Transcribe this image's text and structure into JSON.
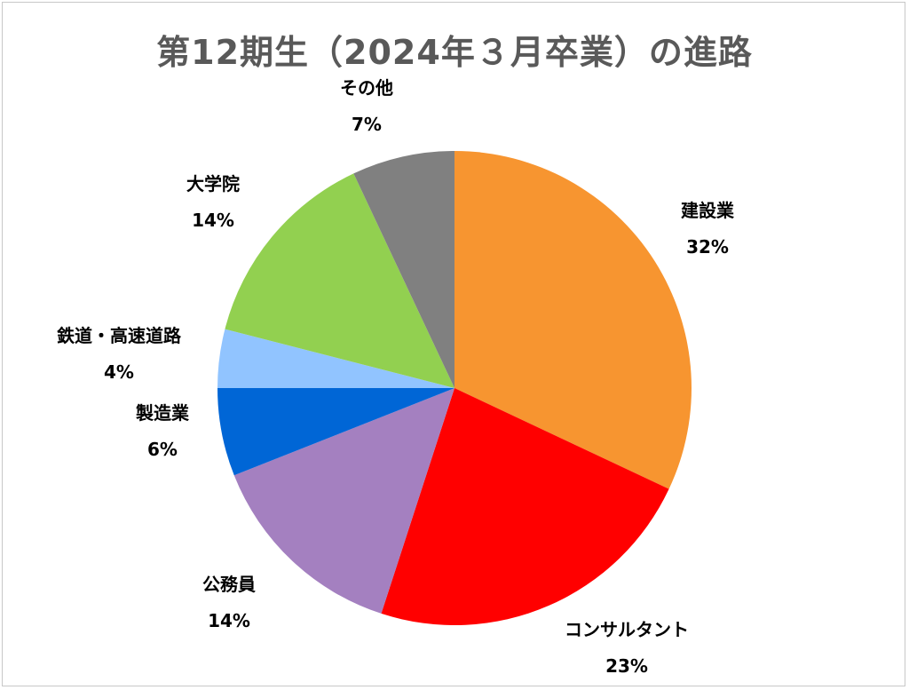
{
  "chart_data": {
    "type": "pie",
    "title": "第12期生（2024年３月卒業）の進路",
    "slices": [
      {
        "label": "建設業",
        "value": 32,
        "value_label": "32%",
        "color": "#f79530"
      },
      {
        "label": "コンサルタント",
        "value": 23,
        "value_label": "23%",
        "color": "#ff0000"
      },
      {
        "label": "公務員",
        "value": 14,
        "value_label": "14%",
        "color": "#a480c0"
      },
      {
        "label": "製造業",
        "value": 6,
        "value_label": "6%",
        "color": "#0066d6"
      },
      {
        "label": "鉄道・高速道路",
        "value": 4,
        "value_label": "4%",
        "color": "#91c4ff"
      },
      {
        "label": "大学院",
        "value": 14,
        "value_label": "14%",
        "color": "#92d050"
      },
      {
        "label": "その他",
        "value": 7,
        "value_label": "7%",
        "color": "#808080"
      }
    ],
    "start": "12 o'clock",
    "direction": "clockwise",
    "legend": "none",
    "data_labels": "outside"
  }
}
